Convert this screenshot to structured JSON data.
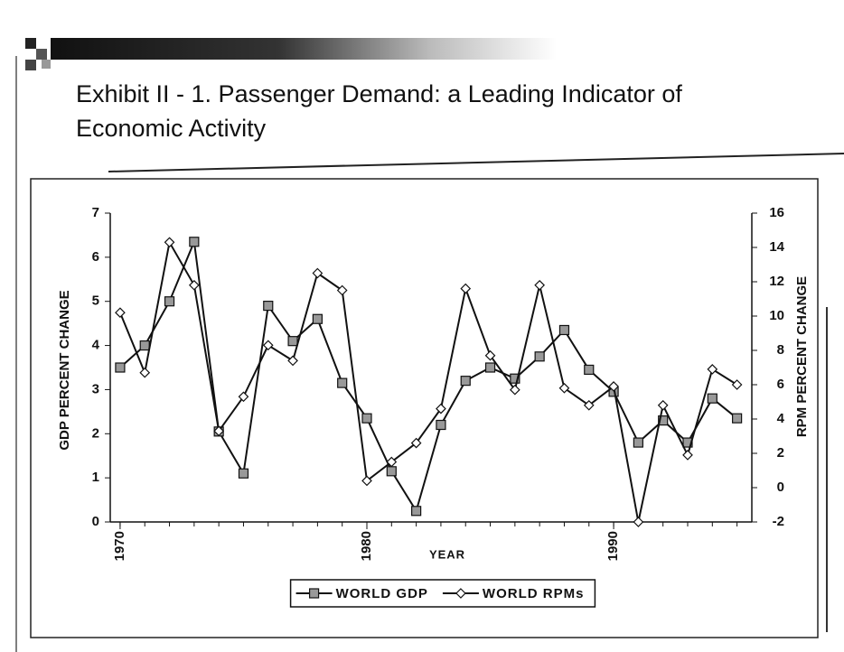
{
  "chart_data": {
    "type": "line",
    "title": "Exhibit II - 1. Passenger Demand: a Leading Indicator of Economic Activity",
    "x": [
      1970,
      1971,
      1972,
      1973,
      1974,
      1975,
      1976,
      1977,
      1978,
      1979,
      1980,
      1981,
      1982,
      1983,
      1984,
      1985,
      1986,
      1987,
      1988,
      1989,
      1990,
      1991,
      1992,
      1993,
      1994,
      1995
    ],
    "xlabel": "YEAR",
    "ylabel": "GDP PERCENT CHANGE",
    "y2label": "RPM PERCENT CHANGE",
    "xlim": [
      1969.6,
      1995.6
    ],
    "xticks": [
      1970,
      1980,
      1990
    ],
    "ylim": [
      0,
      7
    ],
    "yticks": [
      0,
      1,
      2,
      3,
      4,
      5,
      6,
      7
    ],
    "y2lim": [
      -2,
      16
    ],
    "y2ticks": [
      -2,
      0,
      2,
      4,
      6,
      8,
      10,
      12,
      14,
      16
    ],
    "legend": "bottom",
    "series": [
      {
        "name": "WORLD GDP",
        "color": "#111111",
        "marker": "square",
        "axis": "y",
        "values": [
          3.5,
          4.0,
          5.0,
          6.35,
          2.05,
          1.1,
          4.9,
          4.1,
          4.6,
          3.15,
          2.35,
          1.15,
          0.25,
          2.2,
          3.2,
          3.5,
          3.25,
          3.75,
          4.35,
          3.45,
          2.95,
          1.8,
          2.3,
          1.8,
          2.8,
          2.35
        ]
      },
      {
        "name": "WORLD RPMs",
        "color": "#111111",
        "marker": "diamond",
        "axis": "y2",
        "values": [
          10.2,
          6.7,
          14.3,
          11.8,
          3.3,
          5.3,
          8.3,
          7.4,
          12.5,
          11.5,
          0.4,
          1.5,
          2.6,
          4.6,
          11.6,
          7.7,
          5.7,
          11.8,
          5.8,
          4.8,
          5.9,
          -2.0,
          4.8,
          1.9,
          6.9,
          6.0
        ]
      }
    ]
  }
}
